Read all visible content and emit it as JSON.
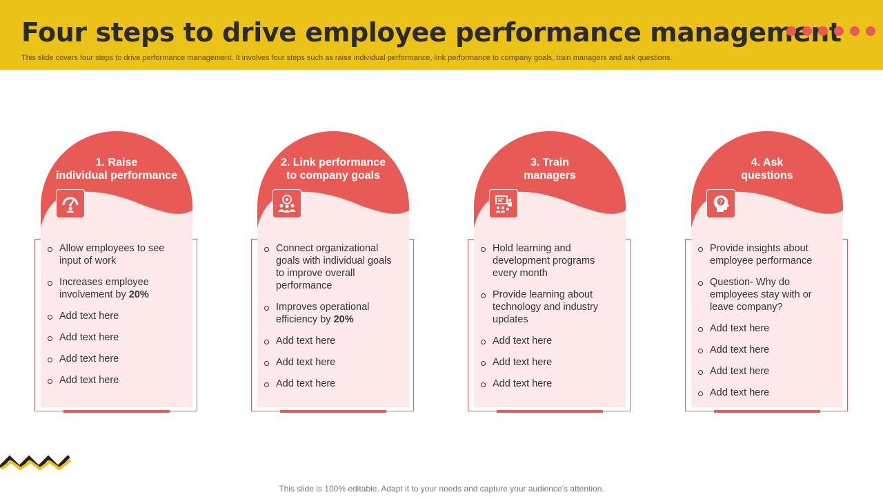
{
  "header": {
    "title": "Four steps to drive employee performance management",
    "subtitle": "This slide covers four steps to drive performance management. It involves four steps such as raise individual performance, link performance to company goals, train managers and ask questions.",
    "accent_color": "#ECC218",
    "dot_color": "#E85A55",
    "dots_count": 6
  },
  "steps": [
    {
      "title_line1": "1. Raise",
      "title_line2": "individual performance",
      "icon": "gauge-performance-icon",
      "bullets": [
        {
          "text": "Allow employees to see input of work",
          "bold": ""
        },
        {
          "text": "Increases employee involvement by ",
          "bold": "20%"
        },
        {
          "text": "Add text here",
          "bold": ""
        },
        {
          "text": "Add text here",
          "bold": ""
        },
        {
          "text": "Add text here",
          "bold": ""
        },
        {
          "text": "Add text here",
          "bold": ""
        }
      ]
    },
    {
      "title_line1": "2. Link performance",
      "title_line2": "to company goals",
      "icon": "team-goals-icon",
      "bullets": [
        {
          "text": "Connect organizational goals with individual  goals to improve overall performance",
          "bold": ""
        },
        {
          "text": "Improves operational efficiency by ",
          "bold": "20%"
        },
        {
          "text": "Add text here",
          "bold": ""
        },
        {
          "text": "Add text here",
          "bold": ""
        },
        {
          "text": "Add text here",
          "bold": ""
        }
      ]
    },
    {
      "title_line1": "3. Train",
      "title_line2": "managers",
      "icon": "presentation-training-icon",
      "bullets": [
        {
          "text": "Hold learning and development programs every month",
          "bold": ""
        },
        {
          "text": "Provide learning about technology and industry updates",
          "bold": ""
        },
        {
          "text": "Add text here",
          "bold": ""
        },
        {
          "text": "Add text here",
          "bold": ""
        },
        {
          "text": "Add text here",
          "bold": ""
        }
      ]
    },
    {
      "title_line1": "4. Ask",
      "title_line2": "questions",
      "icon": "head-question-icon",
      "bullets": [
        {
          "text": "Provide insights about employee performance",
          "bold": ""
        },
        {
          "text": "Question- Why do employees stay with or leave company?",
          "bold": ""
        },
        {
          "text": "Add text here",
          "bold": ""
        },
        {
          "text": "Add text here",
          "bold": ""
        },
        {
          "text": "Add text here",
          "bold": ""
        },
        {
          "text": "Add text here",
          "bold": ""
        }
      ]
    }
  ],
  "card_colors": {
    "primary": "#E85A55",
    "light": "#FDE9E9"
  },
  "footer": "This slide is 100% editable. Adapt it to your needs and capture your audience’s attention.",
  "decoration": "zigzag-icon"
}
